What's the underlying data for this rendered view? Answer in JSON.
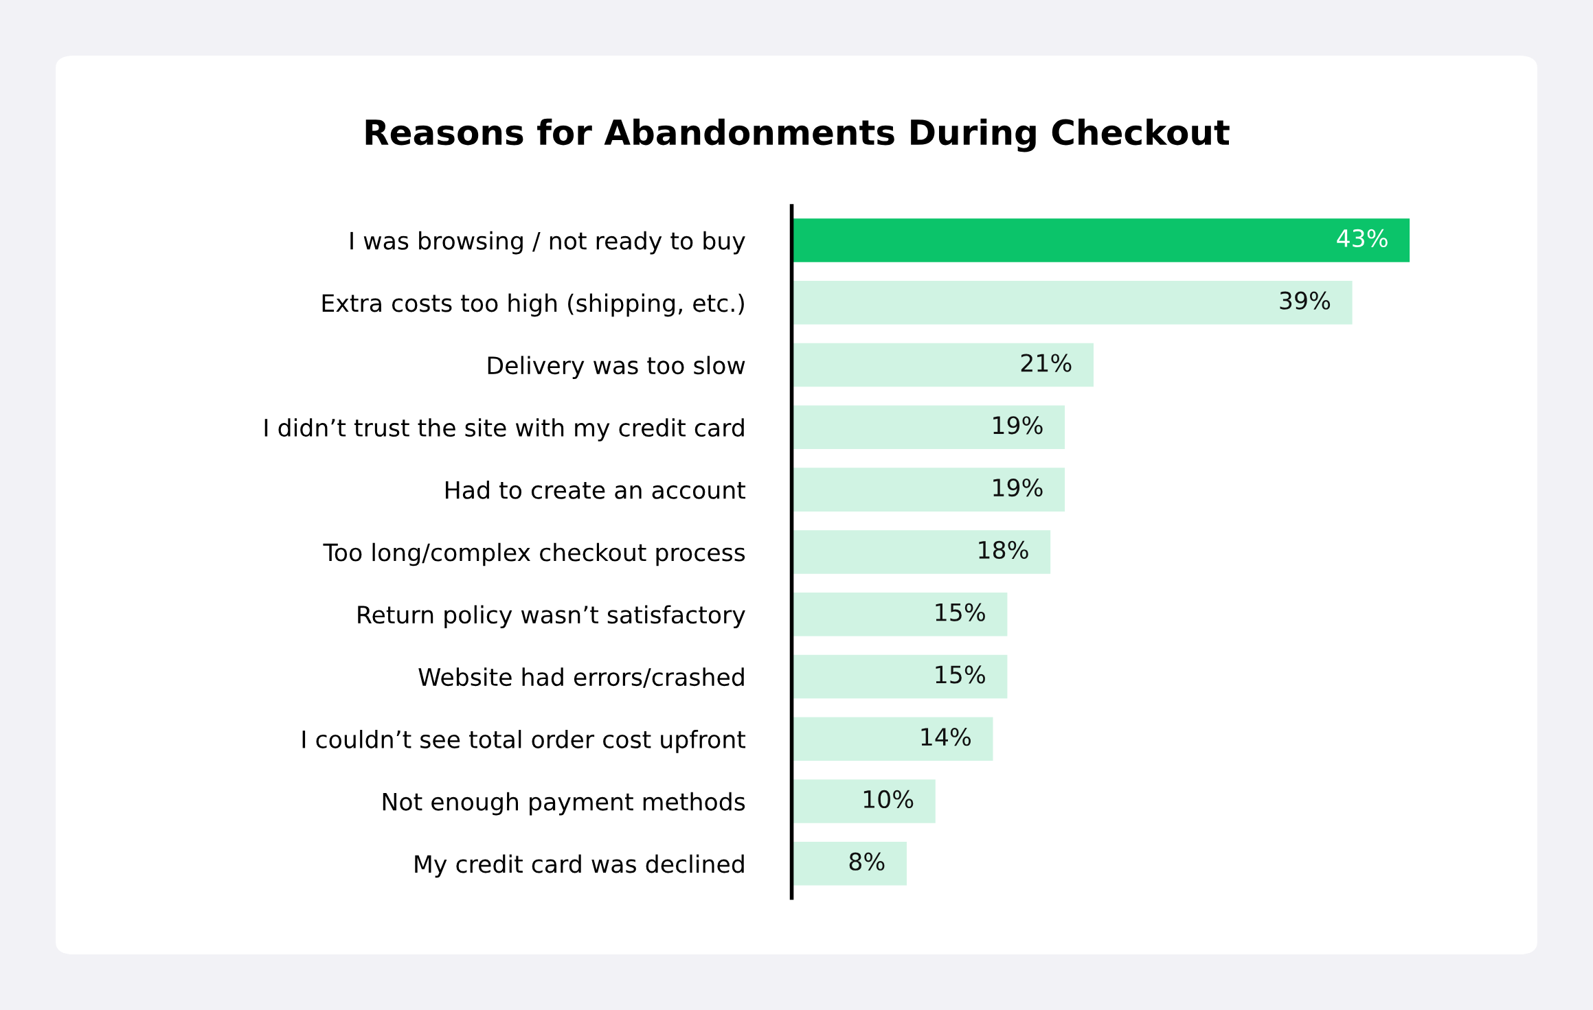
{
  "chart_data": {
    "type": "bar",
    "orientation": "horizontal",
    "relative": false,
    "title": "Reasons for Abandonments During Checkout",
    "categories": [
      "I was browsing / not ready to buy",
      "Extra costs too high (shipping, etc.)",
      "Delivery was too slow",
      "I didn’t trust the site with my credit card",
      "Had to create an account",
      "Too long/complex checkout process",
      "Return policy wasn’t satisfactory",
      "Website had errors/crashed",
      "I couldn’t see total order cost upfront",
      "Not enough payment methods",
      "My credit card was declined"
    ],
    "values": [
      43,
      39,
      21,
      19,
      19,
      18,
      15,
      15,
      14,
      10,
      8
    ],
    "colors": [
      "#0bc46a",
      "#d0f3e3",
      "#d0f3e3",
      "#d0f3e3",
      "#d0f3e3",
      "#d0f3e3",
      "#d0f3e3",
      "#d0f3e3",
      "#d0f3e3",
      "#d0f3e3",
      "#d0f3e3"
    ],
    "value_labels": [
      "43%",
      "39%",
      "21%",
      "19%",
      "19%",
      "18%",
      "15%",
      "15%",
      "14%",
      "10%",
      "8%"
    ],
    "grid": false,
    "legend": false
  }
}
